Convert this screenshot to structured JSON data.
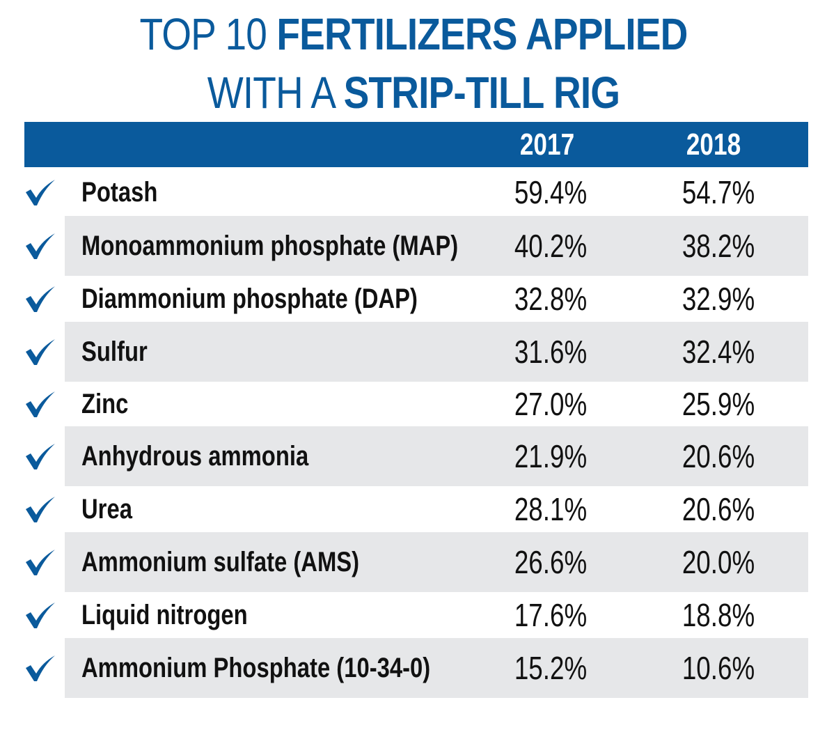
{
  "title": {
    "line1_light": "TOP 10 ",
    "line1_bold": "FERTILIZERS APPLIED",
    "line2_light": "WITH A ",
    "line2_bold": "STRIP-TILL RIG"
  },
  "colors": {
    "accent": "#0a5a9c",
    "row_shade": "#e6e7e9",
    "text": "#111111"
  },
  "chart_data": {
    "type": "table",
    "title": "TOP 10 FERTILIZERS APPLIED WITH A STRIP-TILL RIG",
    "columns": [
      "2017",
      "2018"
    ],
    "row_icon": "checkmark-icon",
    "rows": [
      {
        "name": "Potash",
        "v2017": "59.4%",
        "v2018": "54.7%"
      },
      {
        "name": "Monoammonium phosphate (MAP)",
        "v2017": "40.2%",
        "v2018": "38.2%"
      },
      {
        "name": "Diammonium phosphate (DAP)",
        "v2017": "32.8%",
        "v2018": "32.9%"
      },
      {
        "name": "Sulfur",
        "v2017": "31.6%",
        "v2018": "32.4%"
      },
      {
        "name": "Zinc",
        "v2017": "27.0%",
        "v2018": "25.9%"
      },
      {
        "name": "Anhydrous ammonia",
        "v2017": "21.9%",
        "v2018": "20.6%"
      },
      {
        "name": "Urea",
        "v2017": "28.1%",
        "v2018": "20.6%"
      },
      {
        "name": "Ammonium sulfate (AMS)",
        "v2017": "26.6%",
        "v2018": "20.0%"
      },
      {
        "name": "Liquid nitrogen",
        "v2017": "17.6%",
        "v2018": "18.8%"
      },
      {
        "name": "Ammonium Phosphate (10-34-0)",
        "v2017": "15.2%",
        "v2018": "10.6%"
      }
    ]
  }
}
